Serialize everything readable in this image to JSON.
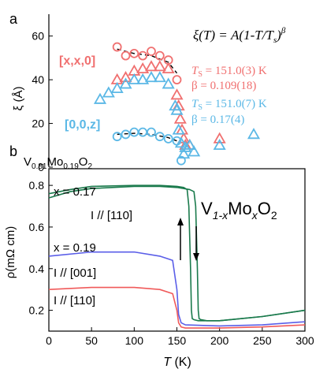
{
  "chart_data": [
    {
      "type": "scatter",
      "panel_label": "a",
      "ylabel": "ξ (Å)",
      "ylim": [
        0,
        70
      ],
      "yticks": [
        "0",
        "20",
        "40",
        "60"
      ],
      "xlim": [
        0,
        300
      ],
      "formula": "ξ(T) = A(1-T/T",
      "formula_sub": "s",
      "formula_tail": ")",
      "formula_sup": "β",
      "series": [
        {
          "name": "[x,x,0]",
          "marker": "triangle",
          "color": "#f07070",
          "x": [
            80,
            90,
            100,
            110,
            120,
            130,
            140,
            150,
            152,
            154,
            156,
            158,
            160,
            165,
            200
          ],
          "y": [
            40,
            41,
            44,
            45,
            46,
            46,
            45,
            33,
            28,
            22,
            17,
            13,
            10,
            10,
            13
          ]
        },
        {
          "name": "[x,x,0] circles",
          "marker": "circle",
          "color": "#f07070",
          "x": [
            80,
            90,
            100,
            110,
            120,
            130,
            140,
            150
          ],
          "y": [
            55,
            51,
            52,
            51,
            53,
            51,
            49,
            40
          ]
        },
        {
          "name": "[0,0,z]",
          "marker": "triangle",
          "color": "#5bb8e6",
          "x": [
            60,
            70,
            80,
            90,
            100,
            110,
            120,
            130,
            140,
            148,
            150,
            152,
            155,
            158,
            160,
            165,
            170,
            200,
            240
          ],
          "y": [
            31,
            34,
            36,
            38,
            40,
            40,
            41,
            41,
            38,
            28,
            26,
            17,
            11,
            6,
            9,
            10,
            7,
            10,
            15
          ]
        },
        {
          "name": "[0,0,z] circles",
          "marker": "circle",
          "color": "#5bb8e6",
          "x": [
            80,
            90,
            100,
            110,
            120,
            130,
            140,
            150,
            155
          ],
          "y": [
            14,
            15,
            16,
            16,
            16,
            14,
            13,
            12,
            3
          ]
        }
      ],
      "fits": [
        {
          "name": "[x,x,0] fit",
          "x": [
            80,
            100,
            120,
            140,
            150
          ],
          "y": [
            54,
            52,
            51,
            48,
            43
          ]
        },
        {
          "name": "[0,0,z] fit",
          "x": [
            80,
            100,
            120,
            140,
            150
          ],
          "y": [
            15,
            15.5,
            15,
            13.5,
            12
          ]
        }
      ],
      "annotations": [
        {
          "key": "label_x",
          "text": "[x,x,0]",
          "color": "#f07070"
        },
        {
          "key": "label_z",
          "text": "[0,0,z]",
          "color": "#5bb8e6"
        },
        {
          "key": "ts_x",
          "text": "T",
          "sub": "S",
          "tail": " = 151.0(3) K",
          "color": "#f07070"
        },
        {
          "key": "beta_x",
          "text": "β = 0.109(18)",
          "color": "#f07070"
        },
        {
          "key": "ts_z",
          "text": "T",
          "sub": "S",
          "tail": " = 151.0(7) K",
          "color": "#5bb8e6"
        },
        {
          "key": "beta_z",
          "text": "β = 0.17(4)",
          "color": "#5bb8e6"
        }
      ]
    },
    {
      "type": "line",
      "panel_label": "b",
      "sample_label_parts": [
        "V",
        "0.81",
        "Mo",
        "0.19",
        "O",
        "2"
      ],
      "material_parts": [
        "V",
        "1-x",
        "Mo",
        "x",
        "O",
        "2"
      ],
      "xlabel": "T (K)",
      "xlabel_italic": "T",
      "xlabel_rest": " (K)",
      "ylabel": "ρ(mΩ cm)",
      "xlim": [
        0,
        300
      ],
      "ylim": [
        0.1,
        0.88
      ],
      "xticks": [
        "0",
        "50",
        "100",
        "150",
        "200",
        "250",
        "300"
      ],
      "yticks": [
        "0.2",
        "0.4",
        "0.6",
        "0.8"
      ],
      "series": [
        {
          "name": "x = 0.17, I // [110] cooling",
          "color": "#1a7a4c",
          "x": [
            0,
            25,
            50,
            100,
            130,
            150,
            158,
            162,
            164,
            166,
            167,
            168,
            170,
            175,
            200,
            250,
            300
          ],
          "y": [
            0.76,
            0.78,
            0.795,
            0.8,
            0.8,
            0.795,
            0.79,
            0.78,
            0.7,
            0.4,
            0.2,
            0.16,
            0.155,
            0.15,
            0.15,
            0.17,
            0.2
          ]
        },
        {
          "name": "x = 0.17, I // [110] warming",
          "color": "#1a7a4c",
          "x": [
            0,
            25,
            50,
            100,
            130,
            150,
            165,
            170,
            172,
            174,
            175,
            176,
            178,
            185,
            200,
            250,
            300
          ],
          "y": [
            0.74,
            0.77,
            0.785,
            0.795,
            0.795,
            0.79,
            0.78,
            0.77,
            0.7,
            0.4,
            0.2,
            0.16,
            0.155,
            0.15,
            0.15,
            0.17,
            0.2
          ]
        },
        {
          "name": "x = 0.19, I // [001]",
          "color": "#5a5ee8",
          "x": [
            0,
            50,
            100,
            130,
            145,
            150,
            152,
            155,
            160,
            200,
            250,
            300
          ],
          "y": [
            0.46,
            0.48,
            0.48,
            0.46,
            0.44,
            0.3,
            0.18,
            0.14,
            0.13,
            0.125,
            0.13,
            0.145
          ]
        },
        {
          "name": "x = 0.19, I // [110]",
          "color": "#f05a5a",
          "x": [
            0,
            50,
            100,
            130,
            145,
            150,
            152,
            155,
            160,
            200,
            250,
            300
          ],
          "y": [
            0.3,
            0.31,
            0.31,
            0.3,
            0.28,
            0.2,
            0.14,
            0.12,
            0.115,
            0.115,
            0.12,
            0.13
          ]
        }
      ],
      "annotations": [
        {
          "key": "x017",
          "text": "x = 0.17"
        },
        {
          "key": "i110_top",
          "text": "I // [110]"
        },
        {
          "key": "x019",
          "text": "x = 0.19"
        },
        {
          "key": "i001",
          "text": "I // [001]"
        },
        {
          "key": "i110_bot",
          "text": "I // [110]"
        }
      ]
    }
  ]
}
